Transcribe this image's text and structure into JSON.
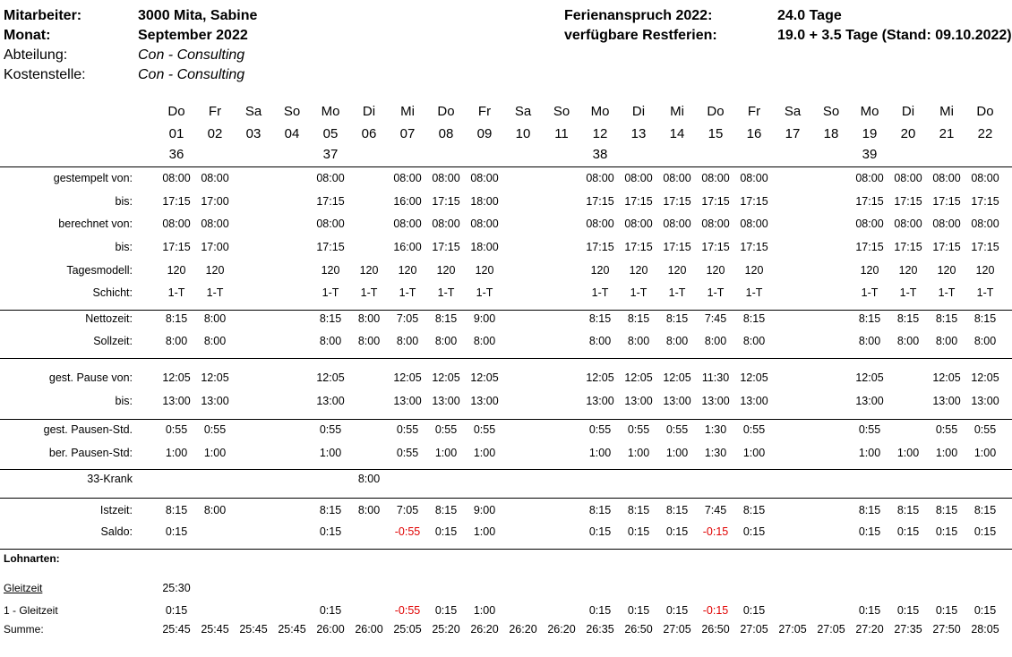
{
  "header": {
    "left": [
      {
        "label": "Mitarbeiter:",
        "value": "3000  Mita, Sabine",
        "bold": true
      },
      {
        "label": "Monat:",
        "value": "September 2022",
        "bold": true
      },
      {
        "label": "Abteilung:",
        "value": "Con - Consulting",
        "bold": false
      },
      {
        "label": "Kostenstelle:",
        "value": "Con - Consulting",
        "bold": false
      }
    ],
    "right": [
      {
        "label": "Ferienanspruch 2022:",
        "value": "24.0 Tage"
      },
      {
        "label": "verfügbare Restferien:",
        "value": "19.0 + 3.5 Tage (Stand: 09.10.2022)"
      }
    ]
  },
  "days": [
    {
      "wd": "Do",
      "dd": "01",
      "wk": "36"
    },
    {
      "wd": "Fr",
      "dd": "02",
      "wk": ""
    },
    {
      "wd": "Sa",
      "dd": "03",
      "wk": ""
    },
    {
      "wd": "So",
      "dd": "04",
      "wk": ""
    },
    {
      "wd": "Mo",
      "dd": "05",
      "wk": "37"
    },
    {
      "wd": "Di",
      "dd": "06",
      "wk": ""
    },
    {
      "wd": "Mi",
      "dd": "07",
      "wk": ""
    },
    {
      "wd": "Do",
      "dd": "08",
      "wk": ""
    },
    {
      "wd": "Fr",
      "dd": "09",
      "wk": ""
    },
    {
      "wd": "Sa",
      "dd": "10",
      "wk": ""
    },
    {
      "wd": "So",
      "dd": "11",
      "wk": ""
    },
    {
      "wd": "Mo",
      "dd": "12",
      "wk": "38"
    },
    {
      "wd": "Di",
      "dd": "13",
      "wk": ""
    },
    {
      "wd": "Mi",
      "dd": "14",
      "wk": ""
    },
    {
      "wd": "Do",
      "dd": "15",
      "wk": ""
    },
    {
      "wd": "Fr",
      "dd": "16",
      "wk": ""
    },
    {
      "wd": "Sa",
      "dd": "17",
      "wk": ""
    },
    {
      "wd": "So",
      "dd": "18",
      "wk": ""
    },
    {
      "wd": "Mo",
      "dd": "19",
      "wk": "39"
    },
    {
      "wd": "Di",
      "dd": "20",
      "wk": ""
    },
    {
      "wd": "Mi",
      "dd": "21",
      "wk": ""
    },
    {
      "wd": "Do",
      "dd": "22",
      "wk": ""
    }
  ],
  "rows": [
    {
      "label": "gestempelt von:",
      "values": [
        "08:00",
        "08:00",
        "",
        "",
        "08:00",
        "",
        "08:00",
        "08:00",
        "08:00",
        "",
        "",
        "08:00",
        "08:00",
        "08:00",
        "08:00",
        "08:00",
        "",
        "",
        "08:00",
        "08:00",
        "08:00",
        "08:00"
      ]
    },
    {
      "label": "bis:",
      "values": [
        "17:15",
        "17:00",
        "",
        "",
        "17:15",
        "",
        "16:00",
        "17:15",
        "18:00",
        "",
        "",
        "17:15",
        "17:15",
        "17:15",
        "17:15",
        "17:15",
        "",
        "",
        "17:15",
        "17:15",
        "17:15",
        "17:15"
      ]
    },
    {
      "label": "berechnet von:",
      "values": [
        "08:00",
        "08:00",
        "",
        "",
        "08:00",
        "",
        "08:00",
        "08:00",
        "08:00",
        "",
        "",
        "08:00",
        "08:00",
        "08:00",
        "08:00",
        "08:00",
        "",
        "",
        "08:00",
        "08:00",
        "08:00",
        "08:00"
      ]
    },
    {
      "label": "bis:",
      "values": [
        "17:15",
        "17:00",
        "",
        "",
        "17:15",
        "",
        "16:00",
        "17:15",
        "18:00",
        "",
        "",
        "17:15",
        "17:15",
        "17:15",
        "17:15",
        "17:15",
        "",
        "",
        "17:15",
        "17:15",
        "17:15",
        "17:15"
      ]
    },
    {
      "label": "Tagesmodell:",
      "values": [
        "120",
        "120",
        "",
        "",
        "120",
        "120",
        "120",
        "120",
        "120",
        "",
        "",
        "120",
        "120",
        "120",
        "120",
        "120",
        "",
        "",
        "120",
        "120",
        "120",
        "120"
      ]
    },
    {
      "label": "Schicht:",
      "values": [
        "1-T",
        "1-T",
        "",
        "",
        "1-T",
        "1-T",
        "1-T",
        "1-T",
        "1-T",
        "",
        "",
        "1-T",
        "1-T",
        "1-T",
        "1-T",
        "1-T",
        "",
        "",
        "1-T",
        "1-T",
        "1-T",
        "1-T"
      ]
    },
    {
      "label": "Nettozeit:",
      "values": [
        "8:15",
        "8:00",
        "",
        "",
        "8:15",
        "8:00",
        "7:05",
        "8:15",
        "9:00",
        "",
        "",
        "8:15",
        "8:15",
        "8:15",
        "7:45",
        "8:15",
        "",
        "",
        "8:15",
        "8:15",
        "8:15",
        "8:15"
      ]
    },
    {
      "label": "Sollzeit:",
      "values": [
        "8:00",
        "8:00",
        "",
        "",
        "8:00",
        "8:00",
        "8:00",
        "8:00",
        "8:00",
        "",
        "",
        "8:00",
        "8:00",
        "8:00",
        "8:00",
        "8:00",
        "",
        "",
        "8:00",
        "8:00",
        "8:00",
        "8:00"
      ]
    },
    {
      "label": "gest. Pause von:",
      "values": [
        "12:05",
        "12:05",
        "",
        "",
        "12:05",
        "",
        "12:05",
        "12:05",
        "12:05",
        "",
        "",
        "12:05",
        "12:05",
        "12:05",
        "11:30",
        "12:05",
        "",
        "",
        "12:05",
        "",
        "12:05",
        "12:05"
      ]
    },
    {
      "label": "bis:",
      "values": [
        "13:00",
        "13:00",
        "",
        "",
        "13:00",
        "",
        "13:00",
        "13:00",
        "13:00",
        "",
        "",
        "13:00",
        "13:00",
        "13:00",
        "13:00",
        "13:00",
        "",
        "",
        "13:00",
        "",
        "13:00",
        "13:00"
      ]
    },
    {
      "label": "gest. Pausen-Std.",
      "values": [
        "0:55",
        "0:55",
        "",
        "",
        "0:55",
        "",
        "0:55",
        "0:55",
        "0:55",
        "",
        "",
        "0:55",
        "0:55",
        "0:55",
        "1:30",
        "0:55",
        "",
        "",
        "0:55",
        "",
        "0:55",
        "0:55"
      ]
    },
    {
      "label": "ber. Pausen-Std:",
      "values": [
        "1:00",
        "1:00",
        "",
        "",
        "1:00",
        "",
        "0:55",
        "1:00",
        "1:00",
        "",
        "",
        "1:00",
        "1:00",
        "1:00",
        "1:30",
        "1:00",
        "",
        "",
        "1:00",
        "1:00",
        "1:00",
        "1:00"
      ]
    },
    {
      "label": "33-Krank",
      "values": [
        "",
        "",
        "",
        "",
        "",
        "8:00",
        "",
        "",
        "",
        "",
        "",
        "",
        "",
        "",
        "",
        "",
        "",
        "",
        "",
        "",
        "",
        ""
      ]
    },
    {
      "label": "Istzeit:",
      "values": [
        "8:15",
        "8:00",
        "",
        "",
        "8:15",
        "8:00",
        "7:05",
        "8:15",
        "9:00",
        "",
        "",
        "8:15",
        "8:15",
        "8:15",
        "7:45",
        "8:15",
        "",
        "",
        "8:15",
        "8:15",
        "8:15",
        "8:15"
      ]
    },
    {
      "label": "Saldo:",
      "values": [
        "0:15",
        "",
        "",
        "",
        "0:15",
        "",
        "-0:55",
        "0:15",
        "1:00",
        "",
        "",
        "0:15",
        "0:15",
        "0:15",
        "-0:15",
        "0:15",
        "",
        "",
        "0:15",
        "0:15",
        "0:15",
        "0:15"
      ]
    }
  ],
  "lohnarten": {
    "title": "Lohnarten:",
    "gleitzeit_label": "Gleitzeit",
    "gleitzeit_value": "25:30",
    "gleit_row": {
      "label": "1 - Gleitzeit",
      "values": [
        "0:15",
        "",
        "",
        "",
        "0:15",
        "",
        "-0:55",
        "0:15",
        "1:00",
        "",
        "",
        "0:15",
        "0:15",
        "0:15",
        "-0:15",
        "0:15",
        "",
        "",
        "0:15",
        "0:15",
        "0:15",
        "0:15"
      ]
    },
    "summe": {
      "label": "Summe:",
      "values": [
        "25:45",
        "25:45",
        "25:45",
        "25:45",
        "26:00",
        "26:00",
        "25:05",
        "25:20",
        "26:20",
        "26:20",
        "26:20",
        "26:35",
        "26:50",
        "27:05",
        "26:50",
        "27:05",
        "27:05",
        "27:05",
        "27:20",
        "27:35",
        "27:50",
        "28:05"
      ]
    }
  },
  "colors": {
    "negative": "#e00000"
  }
}
